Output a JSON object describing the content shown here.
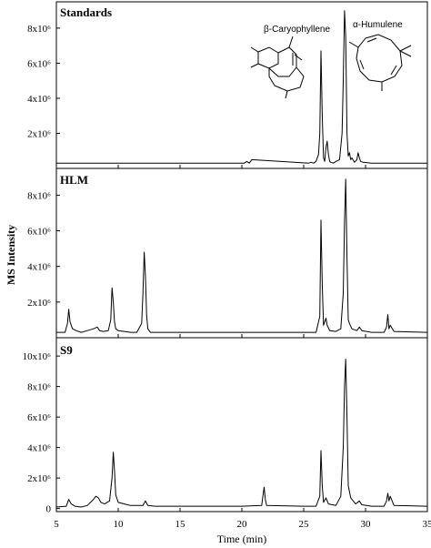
{
  "figure": {
    "ylabel": "MS Intensity",
    "xlabel": "Time (min)",
    "xticks": [
      "5",
      "10",
      "15",
      "20",
      "25",
      "30",
      "35"
    ]
  },
  "compounds": [
    "β-Caryophyllene",
    "α-Humulene"
  ],
  "chart_data": [
    {
      "type": "line",
      "title": "Standards",
      "xlim": [
        5,
        35
      ],
      "ylim": [
        0,
        9500000
      ],
      "yticks": [
        0,
        2000000,
        4000000,
        6000000,
        8000000
      ],
      "ytick_labels": [
        "",
        "2x10⁶",
        "4x10⁶",
        "6x10⁶",
        "8x10⁶"
      ],
      "series": [
        {
          "x": [
            5,
            20.2,
            20.4,
            20.6,
            20.8,
            25.4,
            25.6,
            25.8,
            26.0,
            26.2,
            26.3,
            26.4,
            26.5,
            26.6,
            26.7,
            26.8,
            26.9,
            27.0,
            27.1,
            27.2,
            27.4,
            27.6,
            27.9,
            28.1,
            28.2,
            28.3,
            28.4,
            28.5,
            28.6,
            28.7,
            28.8,
            28.9,
            29.1,
            29.3,
            29.4,
            29.5,
            29.6,
            29.8,
            30.5,
            35
          ],
          "y": [
            300000,
            300000,
            400000,
            300000,
            500000,
            300000,
            350000,
            300000,
            400000,
            800000,
            2000000,
            6700000,
            3000000,
            600000,
            400000,
            1200000,
            1550000,
            800000,
            400000,
            350000,
            300000,
            400000,
            500000,
            2000000,
            5000000,
            9000000,
            7500000,
            2000000,
            700000,
            900000,
            500000,
            600000,
            350000,
            500000,
            900000,
            600000,
            400000,
            350000,
            300000,
            300000
          ]
        }
      ]
    },
    {
      "type": "line",
      "title": "HLM",
      "xlim": [
        5,
        35
      ],
      "ylim": [
        0,
        9500000
      ],
      "yticks": [
        0,
        2000000,
        4000000,
        6000000,
        8000000
      ],
      "ytick_labels": [
        "",
        "2x10⁶",
        "4x10⁶",
        "6x10⁶",
        "8x10⁶"
      ],
      "series": [
        {
          "x": [
            5,
            5.7,
            5.9,
            6.0,
            6.1,
            6.3,
            6.6,
            7.0,
            7.5,
            8.0,
            8.3,
            8.5,
            8.8,
            9.2,
            9.4,
            9.5,
            9.6,
            9.7,
            9.8,
            10.0,
            10.5,
            11.0,
            11.5,
            11.9,
            12.0,
            12.1,
            12.2,
            12.3,
            12.4,
            12.6,
            13.0,
            15,
            20,
            25,
            26.0,
            26.3,
            26.4,
            26.5,
            26.6,
            26.8,
            26.9,
            27.1,
            27.6,
            28.0,
            28.2,
            28.3,
            28.4,
            28.5,
            28.6,
            28.7,
            28.9,
            29.3,
            29.5,
            29.7,
            30.5,
            31.5,
            31.7,
            31.8,
            31.9,
            32.0,
            32.3,
            35
          ],
          "y": [
            300000,
            300000,
            800000,
            1600000,
            900000,
            500000,
            400000,
            300000,
            400000,
            500000,
            600000,
            400000,
            350000,
            400000,
            1000000,
            2800000,
            2000000,
            900000,
            500000,
            400000,
            350000,
            300000,
            300000,
            800000,
            2500000,
            4800000,
            3500000,
            1200000,
            500000,
            300000,
            300000,
            300000,
            300000,
            300000,
            300000,
            1200000,
            6600000,
            3000000,
            700000,
            1100000,
            700000,
            400000,
            350000,
            500000,
            2500000,
            6500000,
            8900000,
            4500000,
            1000000,
            800000,
            500000,
            400000,
            600000,
            400000,
            300000,
            300000,
            600000,
            1300000,
            500000,
            700000,
            350000,
            300000
          ]
        }
      ]
    },
    {
      "type": "line",
      "title": "S9",
      "xlim": [
        5,
        35
      ],
      "ylim": [
        -200000,
        11200000
      ],
      "yticks": [
        0,
        2000000,
        4000000,
        6000000,
        8000000,
        10000000
      ],
      "ytick_labels": [
        "0",
        "2x10⁶",
        "4x10⁶",
        "6x10⁶",
        "8x10⁶",
        "10x10⁶"
      ],
      "series": [
        {
          "x": [
            5,
            5.8,
            6.0,
            6.2,
            6.5,
            7.0,
            7.5,
            8.0,
            8.2,
            8.4,
            8.6,
            8.9,
            9.3,
            9.5,
            9.6,
            9.7,
            9.8,
            10.0,
            10.5,
            11.0,
            12.0,
            12.2,
            12.4,
            13.0,
            15,
            20,
            21.6,
            21.7,
            21.8,
            21.9,
            22.0,
            25,
            26.0,
            26.3,
            26.4,
            26.5,
            26.6,
            26.8,
            27.0,
            27.6,
            28.0,
            28.2,
            28.3,
            28.4,
            28.5,
            28.6,
            28.8,
            29.2,
            29.5,
            29.7,
            30.5,
            31.5,
            31.7,
            31.8,
            31.9,
            32.0,
            32.3,
            35
          ],
          "y": [
            100000,
            150000,
            600000,
            300000,
            150000,
            100000,
            200000,
            600000,
            800000,
            700000,
            400000,
            300000,
            500000,
            2000000,
            3700000,
            2500000,
            900000,
            400000,
            300000,
            200000,
            200000,
            500000,
            200000,
            150000,
            150000,
            150000,
            200000,
            800000,
            1400000,
            600000,
            200000,
            150000,
            150000,
            800000,
            3800000,
            1500000,
            400000,
            700000,
            300000,
            200000,
            800000,
            4000000,
            8000000,
            9800000,
            6000000,
            1500000,
            700000,
            300000,
            500000,
            250000,
            150000,
            150000,
            500000,
            1000000,
            500000,
            800000,
            200000,
            150000
          ]
        }
      ]
    }
  ]
}
